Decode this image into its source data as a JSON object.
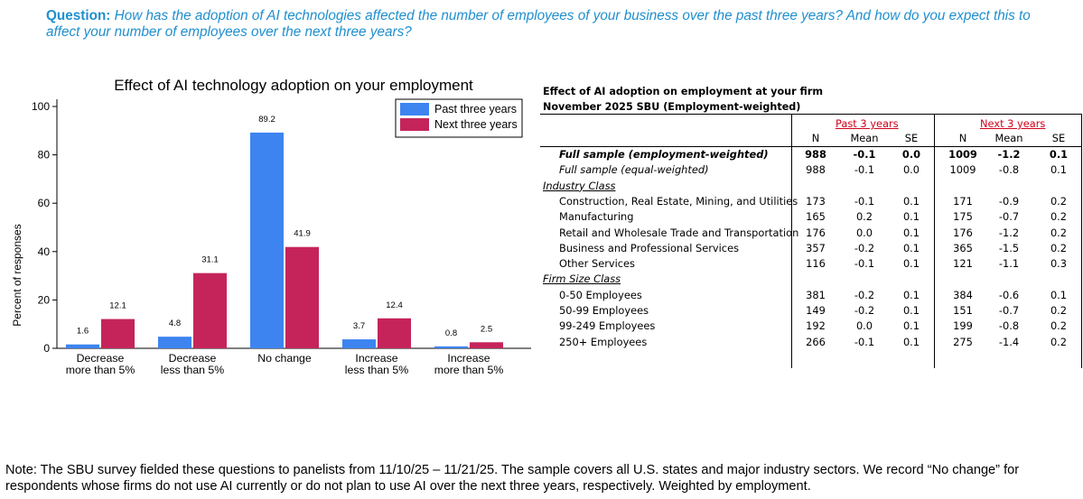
{
  "question": {
    "label": "Question:",
    "text": "How has the adoption of AI technologies affected the number of employees of your business over the past three years? And how do you expect this to affect your number of employees over the next three years?"
  },
  "colors": {
    "past": "#3d84f0",
    "next": "#c5245a",
    "question": "#1f8fce",
    "header_red": "#d0021b"
  },
  "chart_data": {
    "type": "bar",
    "title": "Effect of AI technology adoption on your employment",
    "ylabel": "Percent of responses",
    "xlabel": "",
    "ylim": [
      0,
      100
    ],
    "yticks": [
      0,
      20,
      40,
      60,
      80,
      100
    ],
    "legend_position": "top-right",
    "categories": [
      [
        "Decrease",
        "more than 5%"
      ],
      [
        "Decrease",
        "less than 5%"
      ],
      [
        "No change"
      ],
      [
        "Increase",
        "less than 5%"
      ],
      [
        "Increase",
        "more than 5%"
      ]
    ],
    "series": [
      {
        "name": "Past three years",
        "values": [
          1.6,
          4.8,
          89.2,
          3.7,
          0.8
        ],
        "labels": [
          "1.6",
          "4.8",
          "89.2",
          "3.7",
          "0.8"
        ]
      },
      {
        "name": "Next three years",
        "values": [
          12.1,
          31.1,
          41.9,
          12.4,
          2.5
        ],
        "labels": [
          "12.1",
          "31.1",
          "41.9",
          "12.4",
          "2.5"
        ]
      }
    ]
  },
  "table": {
    "title_line1": "Effect of AI adoption on employment at your firm",
    "title_line2": "November 2025 SBU (Employment-weighted)",
    "group_past": "Past 3 years",
    "group_next": "Next 3 years",
    "col_headers": [
      "N",
      "Mean",
      "SE",
      "N",
      "Mean",
      "SE"
    ],
    "rows": [
      {
        "label": "Full sample (employment-weighted)",
        "style": "bold-italic",
        "values": [
          "988",
          "-0.1",
          "0.0",
          "1009",
          "-1.2",
          "0.1"
        ]
      },
      {
        "label": "Full sample (equal-weighted)",
        "style": "italic",
        "values": [
          "988",
          "-0.1",
          "0.0",
          "1009",
          "-0.8",
          "0.1"
        ]
      },
      {
        "label": "Industry Class",
        "style": "section",
        "values": []
      },
      {
        "label": "Construction, Real Estate, Mining, and Utilities",
        "style": "indent",
        "values": [
          "173",
          "-0.1",
          "0.1",
          "171",
          "-0.9",
          "0.2"
        ]
      },
      {
        "label": "Manufacturing",
        "style": "indent",
        "values": [
          "165",
          "0.2",
          "0.1",
          "175",
          "-0.7",
          "0.2"
        ]
      },
      {
        "label": "Retail and Wholesale Trade and Transportation",
        "style": "indent",
        "values": [
          "176",
          "0.0",
          "0.1",
          "176",
          "-1.2",
          "0.2"
        ]
      },
      {
        "label": "Business and Professional Services",
        "style": "indent",
        "values": [
          "357",
          "-0.2",
          "0.1",
          "365",
          "-1.5",
          "0.2"
        ]
      },
      {
        "label": "Other Services",
        "style": "indent",
        "values": [
          "116",
          "-0.1",
          "0.1",
          "121",
          "-1.1",
          "0.3"
        ]
      },
      {
        "label": "Firm Size Class",
        "style": "section",
        "values": []
      },
      {
        "label": "0-50 Employees",
        "style": "indent",
        "values": [
          "381",
          "-0.2",
          "0.1",
          "384",
          "-0.6",
          "0.1"
        ]
      },
      {
        "label": "50-99 Employees",
        "style": "indent",
        "values": [
          "149",
          "-0.2",
          "0.1",
          "151",
          "-0.7",
          "0.2"
        ]
      },
      {
        "label": "99-249 Employees",
        "style": "indent",
        "values": [
          "192",
          "0.0",
          "0.1",
          "199",
          "-0.8",
          "0.2"
        ]
      },
      {
        "label": "250+ Employees",
        "style": "indent",
        "values": [
          "266",
          "-0.1",
          "0.1",
          "275",
          "-1.4",
          "0.2"
        ]
      }
    ]
  },
  "note": "Note: The SBU survey fielded these questions to panelists from 11/10/25 – 11/21/25. The sample covers all U.S. states and major industry sectors. We record “No change” for respondents whose firms do not use AI currently or do not plan to use AI over the next three years, respectively. Weighted by employment."
}
